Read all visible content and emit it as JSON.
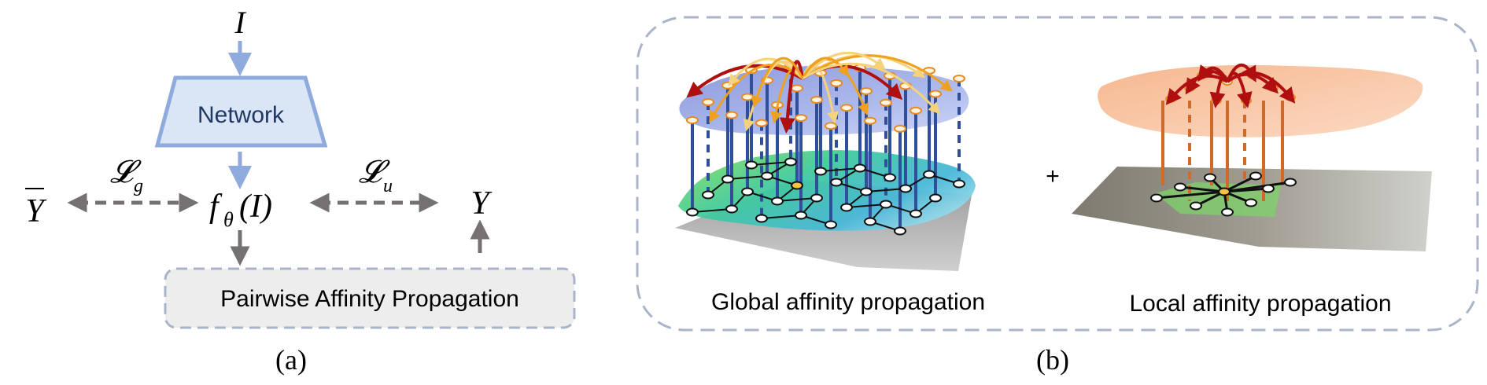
{
  "panel_a": {
    "input": "I",
    "network_label": "Network",
    "loss_g": "𝓛",
    "loss_g_sub": "g",
    "loss_u": "𝓛",
    "loss_u_sub": "u",
    "ybar": "Y",
    "f_main": "f",
    "f_sub": "θ",
    "f_arg": "(I)",
    "y": "Y",
    "propagation_label": "Pairwise Affinity Propagation",
    "caption": "(a)"
  },
  "panel_b": {
    "global_label": "Global affinity propagation",
    "plus": "+",
    "local_label": "Local affinity propagation",
    "caption": "(b)"
  },
  "colors": {
    "arrow_blue": "#8faadc",
    "arrow_gray": "#767171",
    "network_fill": "#dae5f5",
    "network_stroke": "#8faadc",
    "network_text": "#203864",
    "prop_fill": "#ededed",
    "prop_stroke": "#aab4c8",
    "global_pillar": "#2f4f9a",
    "local_pillar": "#d06a2a",
    "arrow_red": "#b00f10",
    "arrow_orange": "#f0a020",
    "arrow_yellow": "#f6d27a"
  },
  "icons": [
    "arrow-down-icon",
    "arrow-left-icon",
    "arrow-right-icon",
    "arrow-up-icon"
  ]
}
